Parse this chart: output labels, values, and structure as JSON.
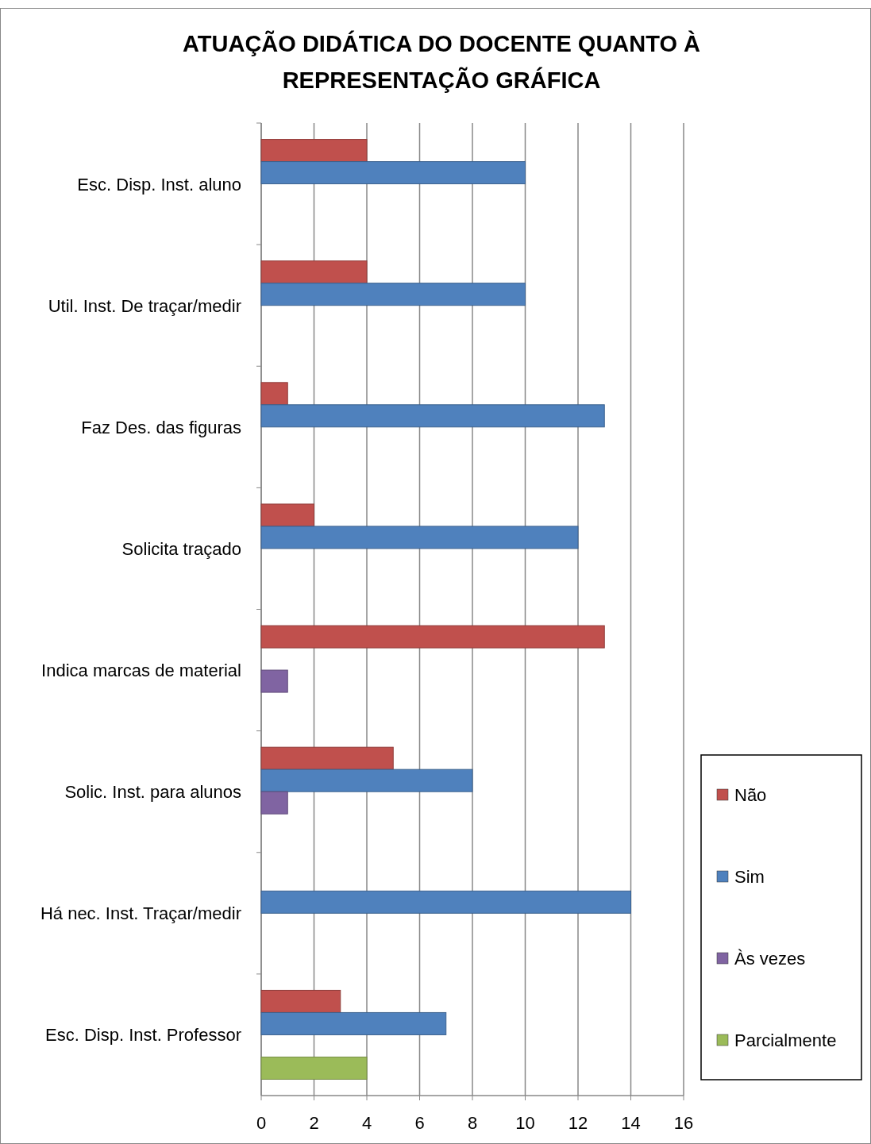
{
  "chart_data": {
    "type": "bar",
    "orientation": "horizontal",
    "title": "ATUAÇÃO DIDÁTICA DO DOCENTE QUANTO À REPRESENTAÇÃO GRÁFICA",
    "categories": [
      "Esc. Disp. Inst. aluno",
      "Util. Inst. De traçar/medir",
      "Faz Des. das figuras",
      "Solicita traçado",
      "Indica marcas de material",
      "Solic. Inst. para alunos",
      "Há nec. Inst. Traçar/medir",
      "Esc. Disp. Inst. Professor"
    ],
    "series": [
      {
        "name": "Não",
        "color": "#c0504d",
        "values": [
          4,
          4,
          1,
          2,
          13,
          5,
          null,
          3
        ]
      },
      {
        "name": "Sim",
        "color": "#4f81bd",
        "values": [
          10,
          10,
          13,
          12,
          null,
          8,
          14,
          7
        ]
      },
      {
        "name": "Às vezes",
        "color": "#8064a2",
        "values": [
          null,
          null,
          null,
          null,
          1,
          1,
          null,
          null
        ]
      },
      {
        "name": "Parcialmente",
        "color": "#9bbb59",
        "values": [
          null,
          null,
          null,
          null,
          null,
          null,
          null,
          4
        ]
      }
    ],
    "xlim": [
      0,
      16
    ],
    "xticks": [
      0,
      2,
      4,
      6,
      8,
      10,
      12,
      14,
      16
    ],
    "grid": "x",
    "legend": "right"
  }
}
